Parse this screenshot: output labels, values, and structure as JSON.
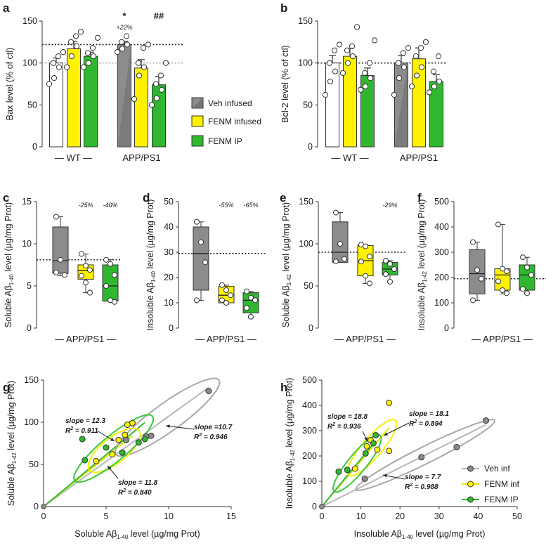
{
  "colors": {
    "wt": "#ffffff",
    "veh": "#8c8c8c",
    "fenm_inf": "#fff200",
    "fenm_ip": "#2fb82f",
    "ell_veh": "#a8a8a8",
    "ell_fenm_inf": "#f5f000",
    "ell_fenm_ip": "#3cc83c",
    "line_veh": "#b8b8b8",
    "line_fenm_inf": "#e6e600",
    "line_fenm_ip": "#33bb33"
  },
  "legend": {
    "veh": "Veh infused",
    "fenm_inf": "FENM infused",
    "fenm_ip": "FENM IP"
  },
  "legend_h": {
    "veh": "Veh inf",
    "fenm_inf": "FENM inf",
    "fenm_ip": "FENM IP"
  },
  "chart_data": [
    {
      "panel": "a",
      "type": "bar",
      "ylabel": "Bax level (% of ctl)",
      "ylim": [
        0,
        150
      ],
      "yticks": [
        0,
        50,
        100,
        150
      ],
      "groups": [
        {
          "label": "— WT —",
          "bars": [
            {
              "color": "wt",
              "mean": 100,
              "sem": 6,
              "points": [
                75,
                82,
                95,
                100,
                108,
                113
              ]
            },
            {
              "color": "fenm_inf",
              "mean": 117,
              "sem": 9,
              "points": [
                95,
                108,
                120,
                125,
                132,
                137
              ]
            },
            {
              "color": "fenm_ip",
              "mean": 108,
              "sem": 5,
              "points": [
                95,
                100,
                108,
                112,
                118,
                130
              ]
            }
          ]
        },
        {
          "label": "APP/PS1",
          "bars": [
            {
              "color": "veh",
              "mean": 122,
              "sem": 4,
              "points": [
                113,
                117,
                122,
                125,
                132
              ]
            },
            {
              "color": "fenm_inf",
              "mean": 94,
              "sem": 10,
              "points": [
                57,
                85,
                95,
                100,
                118,
                122
              ]
            },
            {
              "color": "fenm_ip",
              "mean": 74,
              "sem": 10,
              "points": [
                50,
                58,
                68,
                75,
                85,
                100
              ]
            }
          ]
        }
      ],
      "refs": [
        122,
        100
      ],
      "annotations": [
        {
          "bar": 3,
          "text": "*",
          "y": "star"
        },
        {
          "bar": 3,
          "text": "+22%",
          "y": "pct"
        },
        {
          "bar": 5,
          "text": "##",
          "y": "star"
        }
      ]
    },
    {
      "panel": "b",
      "type": "bar",
      "ylabel": "Bcl-2 level (% of ctl)",
      "ylim": [
        0,
        150
      ],
      "yticks": [
        0,
        50,
        100,
        150
      ],
      "groups": [
        {
          "label": "— WT —",
          "bars": [
            {
              "color": "wt",
              "mean": 100,
              "sem": 9,
              "points": [
                62,
                78,
                90,
                100,
                115,
                122
              ]
            },
            {
              "color": "fenm_inf",
              "mean": 108,
              "sem": 9,
              "points": [
                88,
                100,
                108,
                115,
                120,
                143
              ]
            },
            {
              "color": "fenm_ip",
              "mean": 85,
              "sem": 9,
              "points": [
                68,
                72,
                82,
                88,
                100,
                127
              ]
            }
          ]
        },
        {
          "label": "APP/PS1",
          "bars": [
            {
              "color": "veh",
              "mean": 100,
              "sem": 9,
              "points": [
                62,
                82,
                95,
                100,
                112,
                118
              ]
            },
            {
              "color": "fenm_inf",
              "mean": 105,
              "sem": 13,
              "points": [
                72,
                85,
                95,
                108,
                118,
                125
              ]
            },
            {
              "color": "fenm_ip",
              "mean": 78,
              "sem": 8,
              "points": [
                65,
                72,
                78,
                90,
                108
              ]
            }
          ]
        }
      ],
      "refs": [
        100
      ]
    },
    {
      "panel": "c",
      "type": "box",
      "ylabel_pre": "Soluble Aβ",
      "ylabel_sub": "1-40",
      "ylabel_post": " level (µg/mg Prot)",
      "ylim": [
        0,
        15
      ],
      "yticks": [
        0,
        5,
        10,
        15
      ],
      "ref": 8.1,
      "xlabel": "APP/PS1",
      "boxes": [
        {
          "color": "veh",
          "min": 6.2,
          "q1": 6.5,
          "med": 8.0,
          "q3": 12.0,
          "max": 13.2,
          "points": [
            13.2,
            8.1,
            6.3,
            6.6
          ]
        },
        {
          "color": "fenm_inf",
          "min": 4.2,
          "q1": 5.8,
          "med": 6.8,
          "q3": 7.5,
          "max": 8.8,
          "points": [
            8.8,
            7.4,
            6.9,
            6.2,
            5.4,
            4.2
          ]
        },
        {
          "color": "fenm_ip",
          "min": 3.1,
          "q1": 3.2,
          "med": 5.0,
          "q3": 7.5,
          "max": 8.1,
          "points": [
            8.1,
            7.6,
            6.3,
            5.0,
            3.3,
            3.1
          ]
        }
      ],
      "labels": [
        {
          "box": 1,
          "text": "-25%"
        },
        {
          "box": 2,
          "text": "-40%"
        }
      ]
    },
    {
      "panel": "d",
      "type": "box",
      "ylabel_pre": "Insoluble Aβ",
      "ylabel_sub": "1-40",
      "ylabel_post": " level (µg/mg Prot)",
      "ylim": [
        0,
        50
      ],
      "yticks": [
        0,
        10,
        20,
        30,
        40,
        50
      ],
      "ref": 29.5,
      "xlabel": "APP/PS1",
      "boxes": [
        {
          "color": "veh",
          "min": 11,
          "q1": 15,
          "med": 29.5,
          "q3": 40,
          "max": 42,
          "points": [
            42,
            34,
            26,
            11
          ]
        },
        {
          "color": "fenm_inf",
          "min": 9.5,
          "q1": 10,
          "med": 13,
          "q3": 16.5,
          "max": 17,
          "points": [
            17,
            15,
            13,
            11,
            10
          ]
        },
        {
          "color": "fenm_ip",
          "min": 4,
          "q1": 6,
          "med": 11,
          "q3": 14,
          "max": 14.5,
          "points": [
            14.5,
            12,
            11,
            8,
            4.5
          ]
        }
      ],
      "labels": [
        {
          "box": 1,
          "text": "-55%"
        },
        {
          "box": 2,
          "text": "-65%"
        }
      ]
    },
    {
      "panel": "e",
      "type": "box",
      "ylabel_pre": "Soluble Aβ",
      "ylabel_sub": "1-42",
      "ylabel_post": " level (µg/mg Prot)",
      "ylim": [
        0,
        150
      ],
      "yticks": [
        0,
        50,
        100,
        150
      ],
      "ref": 90,
      "xlabel": "APP/PS1",
      "boxes": [
        {
          "color": "veh",
          "min": 78,
          "q1": 78,
          "med": 90,
          "q3": 126,
          "max": 137,
          "points": [
            137,
            100,
            82,
            79
          ]
        },
        {
          "color": "fenm_inf",
          "min": 53,
          "q1": 62,
          "med": 80,
          "q3": 98,
          "max": 99,
          "points": [
            99,
            97,
            85,
            79,
            62,
            53
          ]
        },
        {
          "color": "fenm_ip",
          "min": 55,
          "q1": 63,
          "med": 70,
          "q3": 78,
          "max": 80,
          "points": [
            80,
            76,
            70,
            64,
            55
          ]
        }
      ],
      "labels": [
        {
          "box": 2,
          "text": "-29%"
        }
      ]
    },
    {
      "panel": "f",
      "type": "box",
      "ylabel_pre": "Insoluble Aβ",
      "ylabel_sub": "1-42",
      "ylabel_post": " level (µg/mg Prot)",
      "ylim": [
        0,
        500
      ],
      "yticks": [
        0,
        100,
        200,
        300,
        400,
        500
      ],
      "ref": 195,
      "xlabel": "APP/PS1",
      "boxes": [
        {
          "color": "veh",
          "min": 110,
          "q1": 135,
          "med": 215,
          "q3": 310,
          "max": 340,
          "points": [
            340,
            230,
            195,
            110
          ]
        },
        {
          "color": "fenm_inf",
          "min": 135,
          "q1": 150,
          "med": 210,
          "q3": 235,
          "max": 410,
          "points": [
            410,
            235,
            225,
            185,
            150,
            138
          ]
        },
        {
          "color": "fenm_ip",
          "min": 135,
          "q1": 150,
          "med": 210,
          "q3": 250,
          "max": 280,
          "points": [
            280,
            240,
            210,
            155,
            138
          ]
        }
      ],
      "labels": []
    },
    {
      "panel": "g",
      "type": "scatter",
      "xlabel_pre": "Soluble Aβ",
      "xlabel_sub": "1-40",
      "xlabel_post": " level (µg/mg Prot)",
      "ylabel_pre": "Soluble Aβ",
      "ylabel_sub": "1-42",
      "ylabel_post": " level (µg/mg Prot)",
      "xlim": [
        0,
        15
      ],
      "ylim": [
        0,
        150
      ],
      "xticks": [
        0,
        5,
        10,
        15
      ],
      "yticks": [
        0,
        50,
        100,
        150
      ],
      "series": [
        {
          "name": "veh",
          "slope": 10.7,
          "r2": 0.946,
          "points": [
            [
              13.2,
              137
            ],
            [
              8.6,
              84
            ],
            [
              8.2,
              83
            ],
            [
              6.6,
              79
            ]
          ],
          "ellipse": {
            "cx": 9.8,
            "cy": 112,
            "rx": 5.8,
            "ry": 12,
            "angle": 0
          }
        },
        {
          "name": "fenm_inf",
          "slope": 11.8,
          "r2": 0.84,
          "points": [
            [
              7.1,
              99
            ],
            [
              6.7,
              97
            ],
            [
              6.5,
              85
            ],
            [
              6.0,
              79
            ],
            [
              5.5,
              62
            ],
            [
              4.2,
              54
            ]
          ],
          "ellipse": {
            "cx": 6.3,
            "cy": 80,
            "rx": 2.9,
            "ry": 10,
            "angle": 0
          }
        },
        {
          "name": "fenm_ip",
          "slope": 12.3,
          "r2": 0.911,
          "points": [
            [
              8.1,
              80
            ],
            [
              7.6,
              76
            ],
            [
              5.0,
              70
            ],
            [
              6.3,
              64
            ],
            [
              3.3,
              55
            ],
            [
              3.1,
              80
            ]
          ],
          "ellipse": {
            "cx": 5.6,
            "cy": 70,
            "rx": 2.9,
            "ry": 9,
            "angle": 0
          }
        }
      ],
      "slope_labels": [
        {
          "series": "fenm_ip",
          "l1": "slope = 12.3",
          "l2_pre": "R",
          "l2_post": " = 0.911"
        },
        {
          "series": "veh",
          "l1": "slope =10.7",
          "l2_pre": "R",
          "l2_post": " = 0.946"
        },
        {
          "series": "fenm_inf",
          "l1": "slope = 11.8",
          "l2_pre": "R",
          "l2_post": " = 0.840"
        }
      ]
    },
    {
      "panel": "h",
      "type": "scatter",
      "xlabel_pre": "Insoluble Aβ",
      "xlabel_sub": "1-40",
      "xlabel_post": " level (µg/mg Prot)",
      "ylabel_pre": "Insoluble Aβ",
      "ylabel_sub": "1-42",
      "ylabel_post": " level (µg/mg Prot)",
      "xlim": [
        0,
        50
      ],
      "ylim": [
        0,
        500
      ],
      "xticks": [
        0,
        10,
        20,
        30,
        40,
        50
      ],
      "yticks": [
        0,
        100,
        200,
        300,
        400,
        500
      ],
      "series": [
        {
          "name": "veh",
          "slope": 7.7,
          "r2": 0.988,
          "points": [
            [
              42,
              340
            ],
            [
              34.5,
              235
            ],
            [
              25.5,
              195
            ],
            [
              11,
              110
            ]
          ],
          "ellipse": {
            "cx": 26,
            "cy": 210,
            "rx": 20,
            "ry": 5,
            "angle": 0
          }
        },
        {
          "name": "fenm_inf",
          "slope": 18.1,
          "r2": 0.894,
          "points": [
            [
              17.2,
              410
            ],
            [
              12.5,
              262
            ],
            [
              11.5,
              238
            ],
            [
              14.2,
              225
            ],
            [
              17.2,
              220
            ],
            [
              8.5,
              150
            ]
          ],
          "ellipse": {
            "cx": 12.5,
            "cy": 265,
            "rx": 5.5,
            "ry": 16,
            "angle": 0
          }
        },
        {
          "name": "fenm_ip",
          "slope": 18.8,
          "r2": 0.936,
          "points": [
            [
              13.8,
              282
            ],
            [
              13.2,
              250
            ],
            [
              11.2,
              210
            ],
            [
              6.5,
              145
            ],
            [
              4.3,
              138
            ]
          ],
          "ellipse": {
            "cx": 10.2,
            "cy": 215,
            "rx": 4.5,
            "ry": 12,
            "angle": 0
          }
        }
      ],
      "slope_labels": [
        {
          "series": "fenm_ip",
          "l1": "slope = 18.8",
          "l2_pre": "R",
          "l2_post": " = 0.936"
        },
        {
          "series": "fenm_inf",
          "l1": "slope = 18.1",
          "l2_pre": "R",
          "l2_post": " = 0.894"
        },
        {
          "series": "veh",
          "l1": "slope = 7.7",
          "l2_pre": "R",
          "l2_post": " = 0.988"
        }
      ]
    }
  ]
}
